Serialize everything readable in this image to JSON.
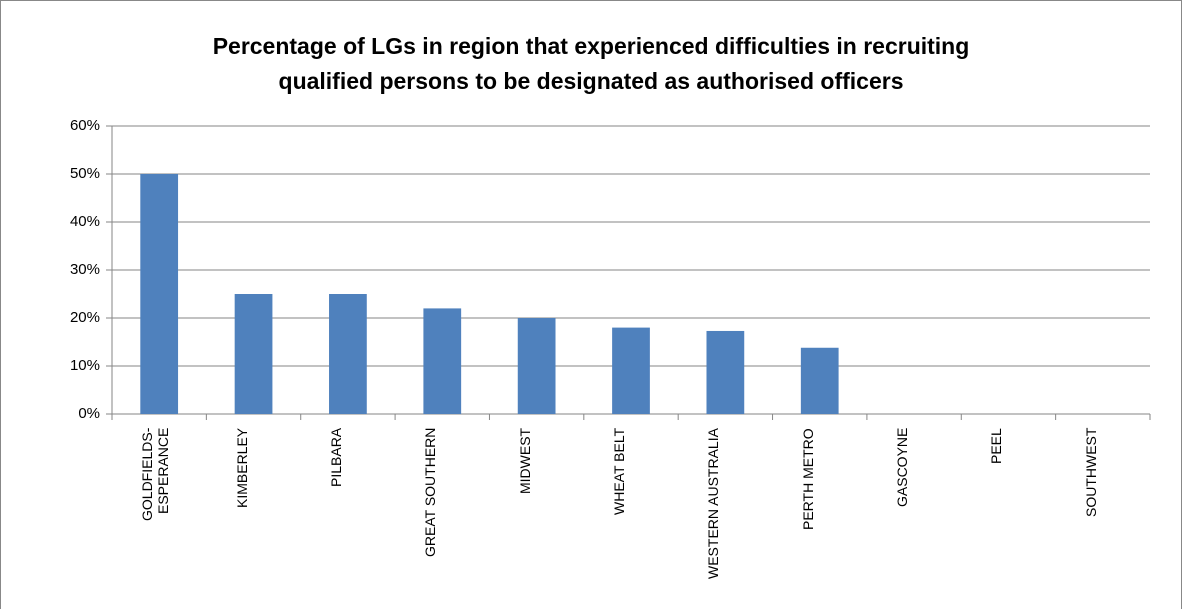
{
  "chart_data": {
    "type": "bar",
    "title": [
      "Percentage of LGs in region that experienced difficulties in recruiting",
      "qualified persons to be designated as authorised officers"
    ],
    "categories": [
      "GOLDFIELDS-ESPERANCE",
      "KIMBERLEY",
      "PILBARA",
      "GREAT SOUTHERN",
      "MIDWEST",
      "WHEAT BELT",
      "WESTERN AUSTRALIA",
      "PERTH METRO",
      "GASCOYNE",
      "PEEL",
      "SOUTHWEST"
    ],
    "values": [
      50,
      25,
      25,
      22,
      20,
      18,
      17.3,
      13.8,
      0,
      0,
      0
    ],
    "color": "#4f81bd",
    "ylim": [
      0,
      60
    ],
    "yticks": [
      {
        "value": 0,
        "label": "0%"
      },
      {
        "value": 10,
        "label": "10%"
      },
      {
        "value": 20,
        "label": "20%"
      },
      {
        "value": 30,
        "label": "30%"
      },
      {
        "value": 40,
        "label": "40%"
      },
      {
        "value": 50,
        "label": "50%"
      },
      {
        "value": 60,
        "label": "60%"
      }
    ],
    "grid": true
  }
}
